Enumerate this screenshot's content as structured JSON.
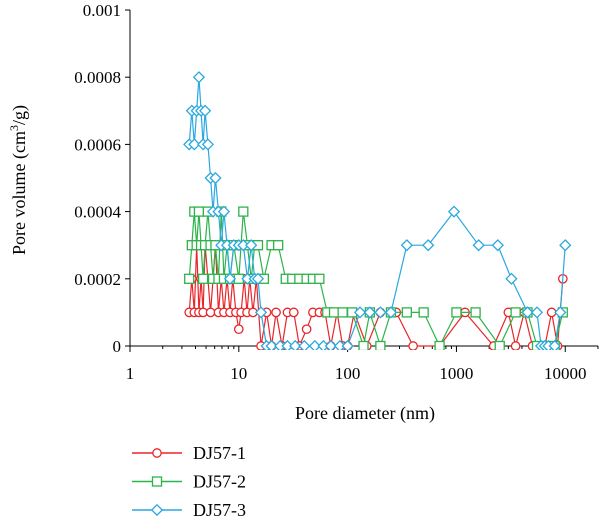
{
  "chart_data": {
    "type": "line",
    "xscale": "log",
    "xlim": [
      1,
      20000
    ],
    "ylim": [
      0,
      0.001
    ],
    "xlabel": "Pore diameter (nm)",
    "ylabel": {
      "before": "Pore volume (cm",
      "sup": "3",
      "after": "/g)"
    },
    "x_ticks": [
      {
        "value": 1,
        "label": "1"
      },
      {
        "value": 10,
        "label": "10"
      },
      {
        "value": 100,
        "label": "100"
      },
      {
        "value": 1000,
        "label": "1000"
      },
      {
        "value": 10000,
        "label": "10000"
      }
    ],
    "y_ticks": [
      {
        "value": 0,
        "label": "0"
      },
      {
        "value": 0.0002,
        "label": "0.0002"
      },
      {
        "value": 0.0004,
        "label": "0.0004"
      },
      {
        "value": 0.0006,
        "label": "0.0006"
      },
      {
        "value": 0.0008,
        "label": "0.0008"
      },
      {
        "value": 0.001,
        "label": "0.001"
      }
    ],
    "legend_position": "below",
    "series": [
      {
        "name": "DJ57-1",
        "color": "#e8262a",
        "marker": "circle",
        "x": [
          3.5,
          3.7,
          3.9,
          4.1,
          4.3,
          4.5,
          4.7,
          4.9,
          5.2,
          5.5,
          5.8,
          6.1,
          6.5,
          6.9,
          7.3,
          7.8,
          8.3,
          8.8,
          9.4,
          10,
          10.5,
          11.2,
          11.9,
          12.6,
          13.5,
          14.5,
          16,
          18,
          20,
          22,
          25,
          28,
          32,
          36,
          42,
          48,
          55,
          62,
          70,
          80,
          90,
          100,
          115,
          150,
          200,
          280,
          400,
          700,
          1200,
          2200,
          3000,
          3500,
          4200,
          5000,
          5800,
          6500,
          7500,
          8500,
          9500
        ],
        "y": [
          0.0001,
          0.0002,
          0.0001,
          0.0003,
          0.0001,
          0.0002,
          0.0001,
          0.0003,
          0.0002,
          0.0001,
          0.0002,
          0.0003,
          0.0001,
          0.0002,
          0.0001,
          0.0002,
          0.0001,
          0.0002,
          0.0001,
          5e-05,
          0.0001,
          0.0002,
          0.0001,
          0.0002,
          0.0001,
          0.0002,
          0,
          0.0001,
          0,
          0.0001,
          0,
          0.0001,
          0.0001,
          0,
          5e-05,
          0.0001,
          0.0001,
          0.0001,
          0,
          0.0001,
          0,
          0,
          0.0001,
          0,
          0.0001,
          0.0001,
          0,
          0,
          0.0001,
          0,
          0.0001,
          0,
          0.0001,
          0,
          0,
          0,
          0.0001,
          0,
          0.0002
        ]
      },
      {
        "name": "DJ57-2",
        "color": "#2db34a",
        "marker": "square",
        "x": [
          3.5,
          3.7,
          3.9,
          4.1,
          4.3,
          4.5,
          4.7,
          4.9,
          5.2,
          5.5,
          5.8,
          6.1,
          6.5,
          6.9,
          7.3,
          7.8,
          8.3,
          9,
          10,
          11,
          12,
          13,
          14,
          15,
          17,
          20,
          23,
          27,
          31,
          36,
          42,
          48,
          55,
          65,
          75,
          90,
          110,
          140,
          160,
          200,
          250,
          350,
          500,
          700,
          1000,
          1500,
          2500,
          3500,
          4500,
          5500,
          6500,
          8000,
          9500
        ],
        "y": [
          0.0002,
          0.0003,
          0.0004,
          0.0003,
          0.0004,
          0.0003,
          0.0002,
          0.0003,
          0.0004,
          0.0003,
          0.0002,
          0.0003,
          0.0002,
          0.0004,
          0.0002,
          0.0003,
          0.0002,
          0.0003,
          0.0002,
          0.0004,
          0.0003,
          0.0002,
          0.0003,
          0.0003,
          0.0002,
          0.0003,
          0.0003,
          0.0002,
          0.0002,
          0.0002,
          0.0002,
          0.0002,
          0.0002,
          0.0001,
          0.0001,
          0.0001,
          0.0001,
          0,
          0.0001,
          0,
          0.0001,
          0.0001,
          0.0001,
          0,
          0.0001,
          0.0001,
          0,
          0.0001,
          0.0001,
          0,
          0,
          0,
          0.0001
        ]
      },
      {
        "name": "DJ57-3",
        "color": "#2aa8e0",
        "marker": "diamond",
        "x": [
          3.5,
          3.7,
          3.9,
          4.1,
          4.3,
          4.5,
          4.7,
          4.9,
          5.2,
          5.5,
          5.8,
          6.1,
          6.5,
          6.9,
          7.3,
          7.8,
          8.3,
          9,
          10,
          11,
          12,
          13,
          14,
          15,
          16,
          18,
          20,
          24,
          28,
          33,
          40,
          50,
          60,
          70,
          85,
          100,
          130,
          160,
          200,
          250,
          350,
          550,
          950,
          1600,
          2400,
          3200,
          4500,
          5500,
          6000,
          6500,
          7000,
          8000,
          9000,
          10000
        ],
        "y": [
          0.0006,
          0.0007,
          0.0006,
          0.0007,
          0.0008,
          0.0007,
          0.0006,
          0.0007,
          0.0006,
          0.0005,
          0.0004,
          0.0005,
          0.0004,
          0.0003,
          0.0004,
          0.0003,
          0.0002,
          0.0003,
          0.0003,
          0.0003,
          0.0002,
          0.0003,
          0.0002,
          0.0002,
          0.0001,
          0,
          0,
          0,
          0,
          0,
          0,
          0,
          0,
          0,
          0,
          0,
          0.0001,
          0.0001,
          0.0001,
          0.0001,
          0.0003,
          0.0003,
          0.0004,
          0.0003,
          0.0003,
          0.0002,
          0.0001,
          0.0001,
          0,
          0,
          0,
          0,
          0.0001,
          0.0003
        ]
      }
    ]
  }
}
